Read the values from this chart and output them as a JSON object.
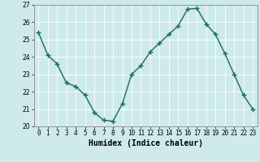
{
  "x": [
    0,
    1,
    2,
    3,
    4,
    5,
    6,
    7,
    8,
    9,
    10,
    11,
    12,
    13,
    14,
    15,
    16,
    17,
    18,
    19,
    20,
    21,
    22,
    23
  ],
  "y": [
    25.4,
    24.1,
    23.6,
    22.5,
    22.3,
    21.8,
    20.8,
    20.35,
    20.3,
    21.3,
    23.0,
    23.5,
    24.3,
    24.8,
    25.3,
    25.8,
    26.75,
    26.8,
    25.9,
    25.3,
    24.2,
    23.0,
    21.8,
    21.0
  ],
  "line_color": "#1a6b5a",
  "marker": "+",
  "marker_size": 4,
  "marker_linewidth": 1.0,
  "bg_color": "#ceeaea",
  "grid_color": "#ffffff",
  "xlabel": "Humidex (Indice chaleur)",
  "xlabel_fontsize": 7,
  "xlabel_fontweight": "bold",
  "xlim": [
    -0.5,
    23.5
  ],
  "ylim": [
    20,
    27
  ],
  "yticks": [
    20,
    21,
    22,
    23,
    24,
    25,
    26,
    27
  ],
  "xticks": [
    0,
    1,
    2,
    3,
    4,
    5,
    6,
    7,
    8,
    9,
    10,
    11,
    12,
    13,
    14,
    15,
    16,
    17,
    18,
    19,
    20,
    21,
    22,
    23
  ],
  "tick_fontsize": 5.5,
  "line_width": 1.0,
  "spine_color": "#888888"
}
